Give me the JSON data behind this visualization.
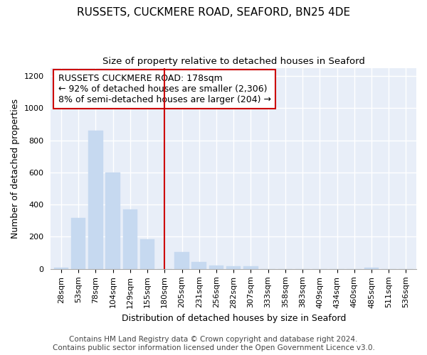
{
  "title": "RUSSETS, CUCKMERE ROAD, SEAFORD, BN25 4DE",
  "subtitle": "Size of property relative to detached houses in Seaford",
  "xlabel": "Distribution of detached houses by size in Seaford",
  "ylabel": "Number of detached properties",
  "categories": [
    "28sqm",
    "53sqm",
    "78sqm",
    "104sqm",
    "129sqm",
    "155sqm",
    "180sqm",
    "205sqm",
    "231sqm",
    "256sqm",
    "282sqm",
    "307sqm",
    "333sqm",
    "358sqm",
    "383sqm",
    "409sqm",
    "434sqm",
    "460sqm",
    "485sqm",
    "511sqm",
    "536sqm"
  ],
  "values": [
    10,
    315,
    860,
    600,
    370,
    185,
    0,
    105,
    45,
    20,
    15,
    15,
    0,
    0,
    0,
    0,
    0,
    0,
    10,
    0,
    0
  ],
  "bar_color": "#c6d9f0",
  "vline_index": 6,
  "vline_color": "#cc0000",
  "annotation_text": "RUSSETS CUCKMERE ROAD: 178sqm\n← 92% of detached houses are smaller (2,306)\n8% of semi-detached houses are larger (204) →",
  "annotation_box_edge_color": "#cc0000",
  "ylim": [
    0,
    1250
  ],
  "yticks": [
    0,
    200,
    400,
    600,
    800,
    1000,
    1200
  ],
  "footer_line1": "Contains HM Land Registry data © Crown copyright and database right 2024.",
  "footer_line2": "Contains public sector information licensed under the Open Government Licence v3.0.",
  "background_color": "#ffffff",
  "plot_bg_color": "#e8eef8",
  "title_fontsize": 11,
  "subtitle_fontsize": 9.5,
  "ylabel_fontsize": 9,
  "xlabel_fontsize": 9,
  "tick_fontsize": 8,
  "annotation_fontsize": 9,
  "footer_fontsize": 7.5
}
